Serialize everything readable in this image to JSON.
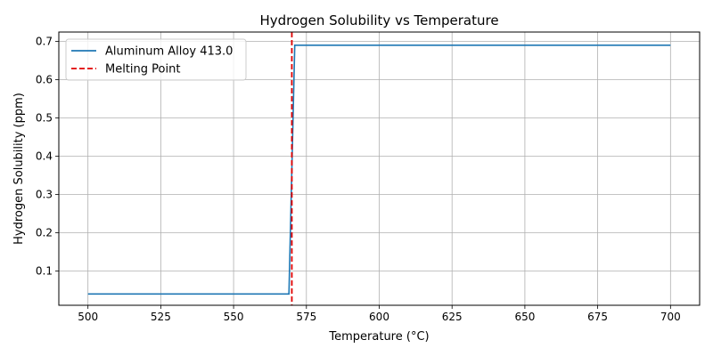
{
  "chart_data": {
    "type": "line",
    "title": "Hydrogen Solubility vs Temperature",
    "xlabel": "Temperature (°C)",
    "ylabel": "Hydrogen Solubility (ppm)",
    "xlim": [
      490,
      710
    ],
    "ylim": [
      0.0105,
      0.7245
    ],
    "xticks": [
      500,
      525,
      550,
      575,
      600,
      625,
      650,
      675,
      700
    ],
    "yticks": [
      0.1,
      0.2,
      0.3,
      0.4,
      0.5,
      0.6,
      0.7
    ],
    "xtick_labels": [
      "500",
      "525",
      "550",
      "575",
      "600",
      "625",
      "650",
      "675",
      "700"
    ],
    "ytick_labels": [
      "0.1",
      "0.2",
      "0.3",
      "0.4",
      "0.5",
      "0.6",
      "0.7"
    ],
    "grid": true,
    "legend_position": "upper-left",
    "series": [
      {
        "name": "Aluminum Alloy 413.0",
        "color": "#1f77b4",
        "style": "solid",
        "x": [
          500,
          569,
          571,
          700
        ],
        "y": [
          0.04,
          0.04,
          0.69,
          0.69
        ]
      }
    ],
    "vlines": [
      {
        "name": "Melting Point",
        "x": 570,
        "color": "#e00000",
        "style": "dashed"
      }
    ]
  }
}
